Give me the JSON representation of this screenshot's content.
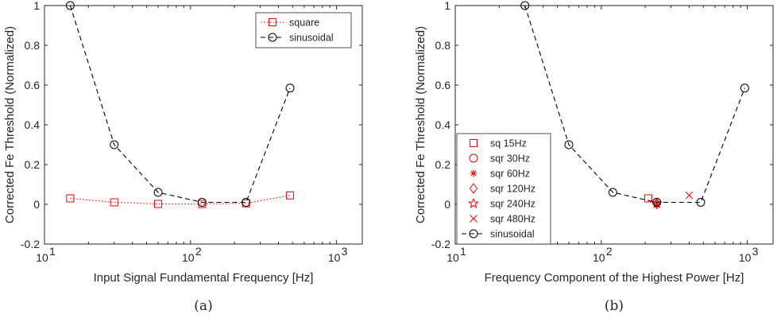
{
  "colors": {
    "square": "#ff0000",
    "sinusoidal": "#000000",
    "axis": "#262626"
  },
  "chart_data": [
    {
      "type": "line",
      "panel_label": "(a)",
      "xlabel": "Input Signal Fundamental Frequency [Hz]",
      "ylabel": "Corrected Fe Threshold (Normalized)",
      "xscale": "log",
      "xlim": [
        10,
        1500
      ],
      "ylim": [
        -0.2,
        1.0
      ],
      "xtick_labels": [
        "10",
        "10",
        "10"
      ],
      "xtick_exponents": [
        "1",
        "2",
        "3"
      ],
      "ytick_labels": [
        "-0.2",
        "0",
        "0.2",
        "0.4",
        "0.6",
        "0.8",
        "1"
      ],
      "legend_position": "top-right",
      "series": [
        {
          "name": "square",
          "color": "#ff0000",
          "linestyle": "dotted",
          "marker": "square",
          "x": [
            15,
            30,
            60,
            120,
            240,
            480
          ],
          "y": [
            0.03,
            0.01,
            0.002,
            0.002,
            0.005,
            0.045
          ]
        },
        {
          "name": "sinusoidal",
          "color": "#000000",
          "linestyle": "dashed",
          "marker": "circle",
          "x": [
            15,
            30,
            60,
            120,
            240,
            480
          ],
          "y": [
            1.0,
            0.3,
            0.06,
            0.01,
            0.01,
            0.585
          ]
        }
      ]
    },
    {
      "type": "scatter",
      "panel_label": "(b)",
      "xlabel": "Frequency Component of the Highest Power [Hz]",
      "ylabel": "Corrected Fe Threshold (Normalized)",
      "xscale": "log",
      "xlim": [
        10,
        1500
      ],
      "ylim": [
        -0.2,
        1.0
      ],
      "xtick_labels": [
        "10",
        "10",
        "10"
      ],
      "xtick_exponents": [
        "1",
        "2",
        "3"
      ],
      "ytick_labels": [
        "-0.2",
        "0",
        "0.2",
        "0.4",
        "0.6",
        "0.8",
        "1"
      ],
      "legend_position": "bottom-left",
      "series": [
        {
          "name": "sq 15Hz",
          "color": "#ff0000",
          "marker": "square",
          "x": [
            210
          ],
          "y": [
            0.03
          ]
        },
        {
          "name": "sqr 30Hz",
          "color": "#ff0000",
          "marker": "circle",
          "x": [
            240
          ],
          "y": [
            0.01
          ]
        },
        {
          "name": "sqr 60Hz",
          "color": "#ff0000",
          "marker": "asterisk",
          "x": [
            240
          ],
          "y": [
            0.002
          ]
        },
        {
          "name": "sqr 120Hz",
          "color": "#ff0000",
          "marker": "diamond",
          "x": [
            240
          ],
          "y": [
            0.002
          ]
        },
        {
          "name": "sqr 240Hz",
          "color": "#ff0000",
          "marker": "star",
          "x": [
            240
          ],
          "y": [
            0.005
          ]
        },
        {
          "name": "sqr 480Hz",
          "color": "#ff0000",
          "marker": "x",
          "x": [
            400
          ],
          "y": [
            0.045
          ]
        },
        {
          "name": "sinusoidal",
          "color": "#000000",
          "linestyle": "dashed",
          "marker": "circle",
          "x": [
            30,
            60,
            120,
            240,
            480,
            960
          ],
          "y": [
            1.0,
            0.3,
            0.06,
            0.01,
            0.01,
            0.585
          ]
        }
      ]
    }
  ]
}
